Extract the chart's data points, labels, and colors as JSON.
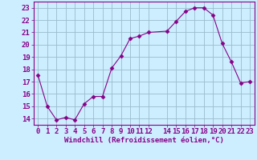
{
  "x": [
    0,
    1,
    2,
    3,
    4,
    5,
    6,
    7,
    8,
    9,
    10,
    11,
    12,
    14,
    15,
    16,
    17,
    18,
    19,
    20,
    21,
    22,
    23
  ],
  "y": [
    17.5,
    15.0,
    13.9,
    14.1,
    13.9,
    15.2,
    15.8,
    15.8,
    18.1,
    19.1,
    20.5,
    20.7,
    21.0,
    21.1,
    21.9,
    22.7,
    23.0,
    23.0,
    22.4,
    20.1,
    18.6,
    16.9,
    17.0
  ],
  "line_color": "#880088",
  "marker": "D",
  "marker_size": 2.5,
  "bg_color": "#cceeff",
  "grid_color": "#99bbcc",
  "xlabel": "Windchill (Refroidissement éolien,°C)",
  "xlabel_color": "#880088",
  "xlabel_fontsize": 6.5,
  "tick_color": "#880088",
  "tick_fontsize": 6.5,
  "ylim": [
    13.5,
    23.5
  ],
  "xlim": [
    -0.5,
    23.5
  ],
  "yticks": [
    14,
    15,
    16,
    17,
    18,
    19,
    20,
    21,
    22,
    23
  ],
  "xticks": [
    0,
    1,
    2,
    3,
    4,
    5,
    6,
    7,
    8,
    9,
    10,
    11,
    12,
    14,
    15,
    16,
    17,
    18,
    19,
    20,
    21,
    22,
    23
  ]
}
